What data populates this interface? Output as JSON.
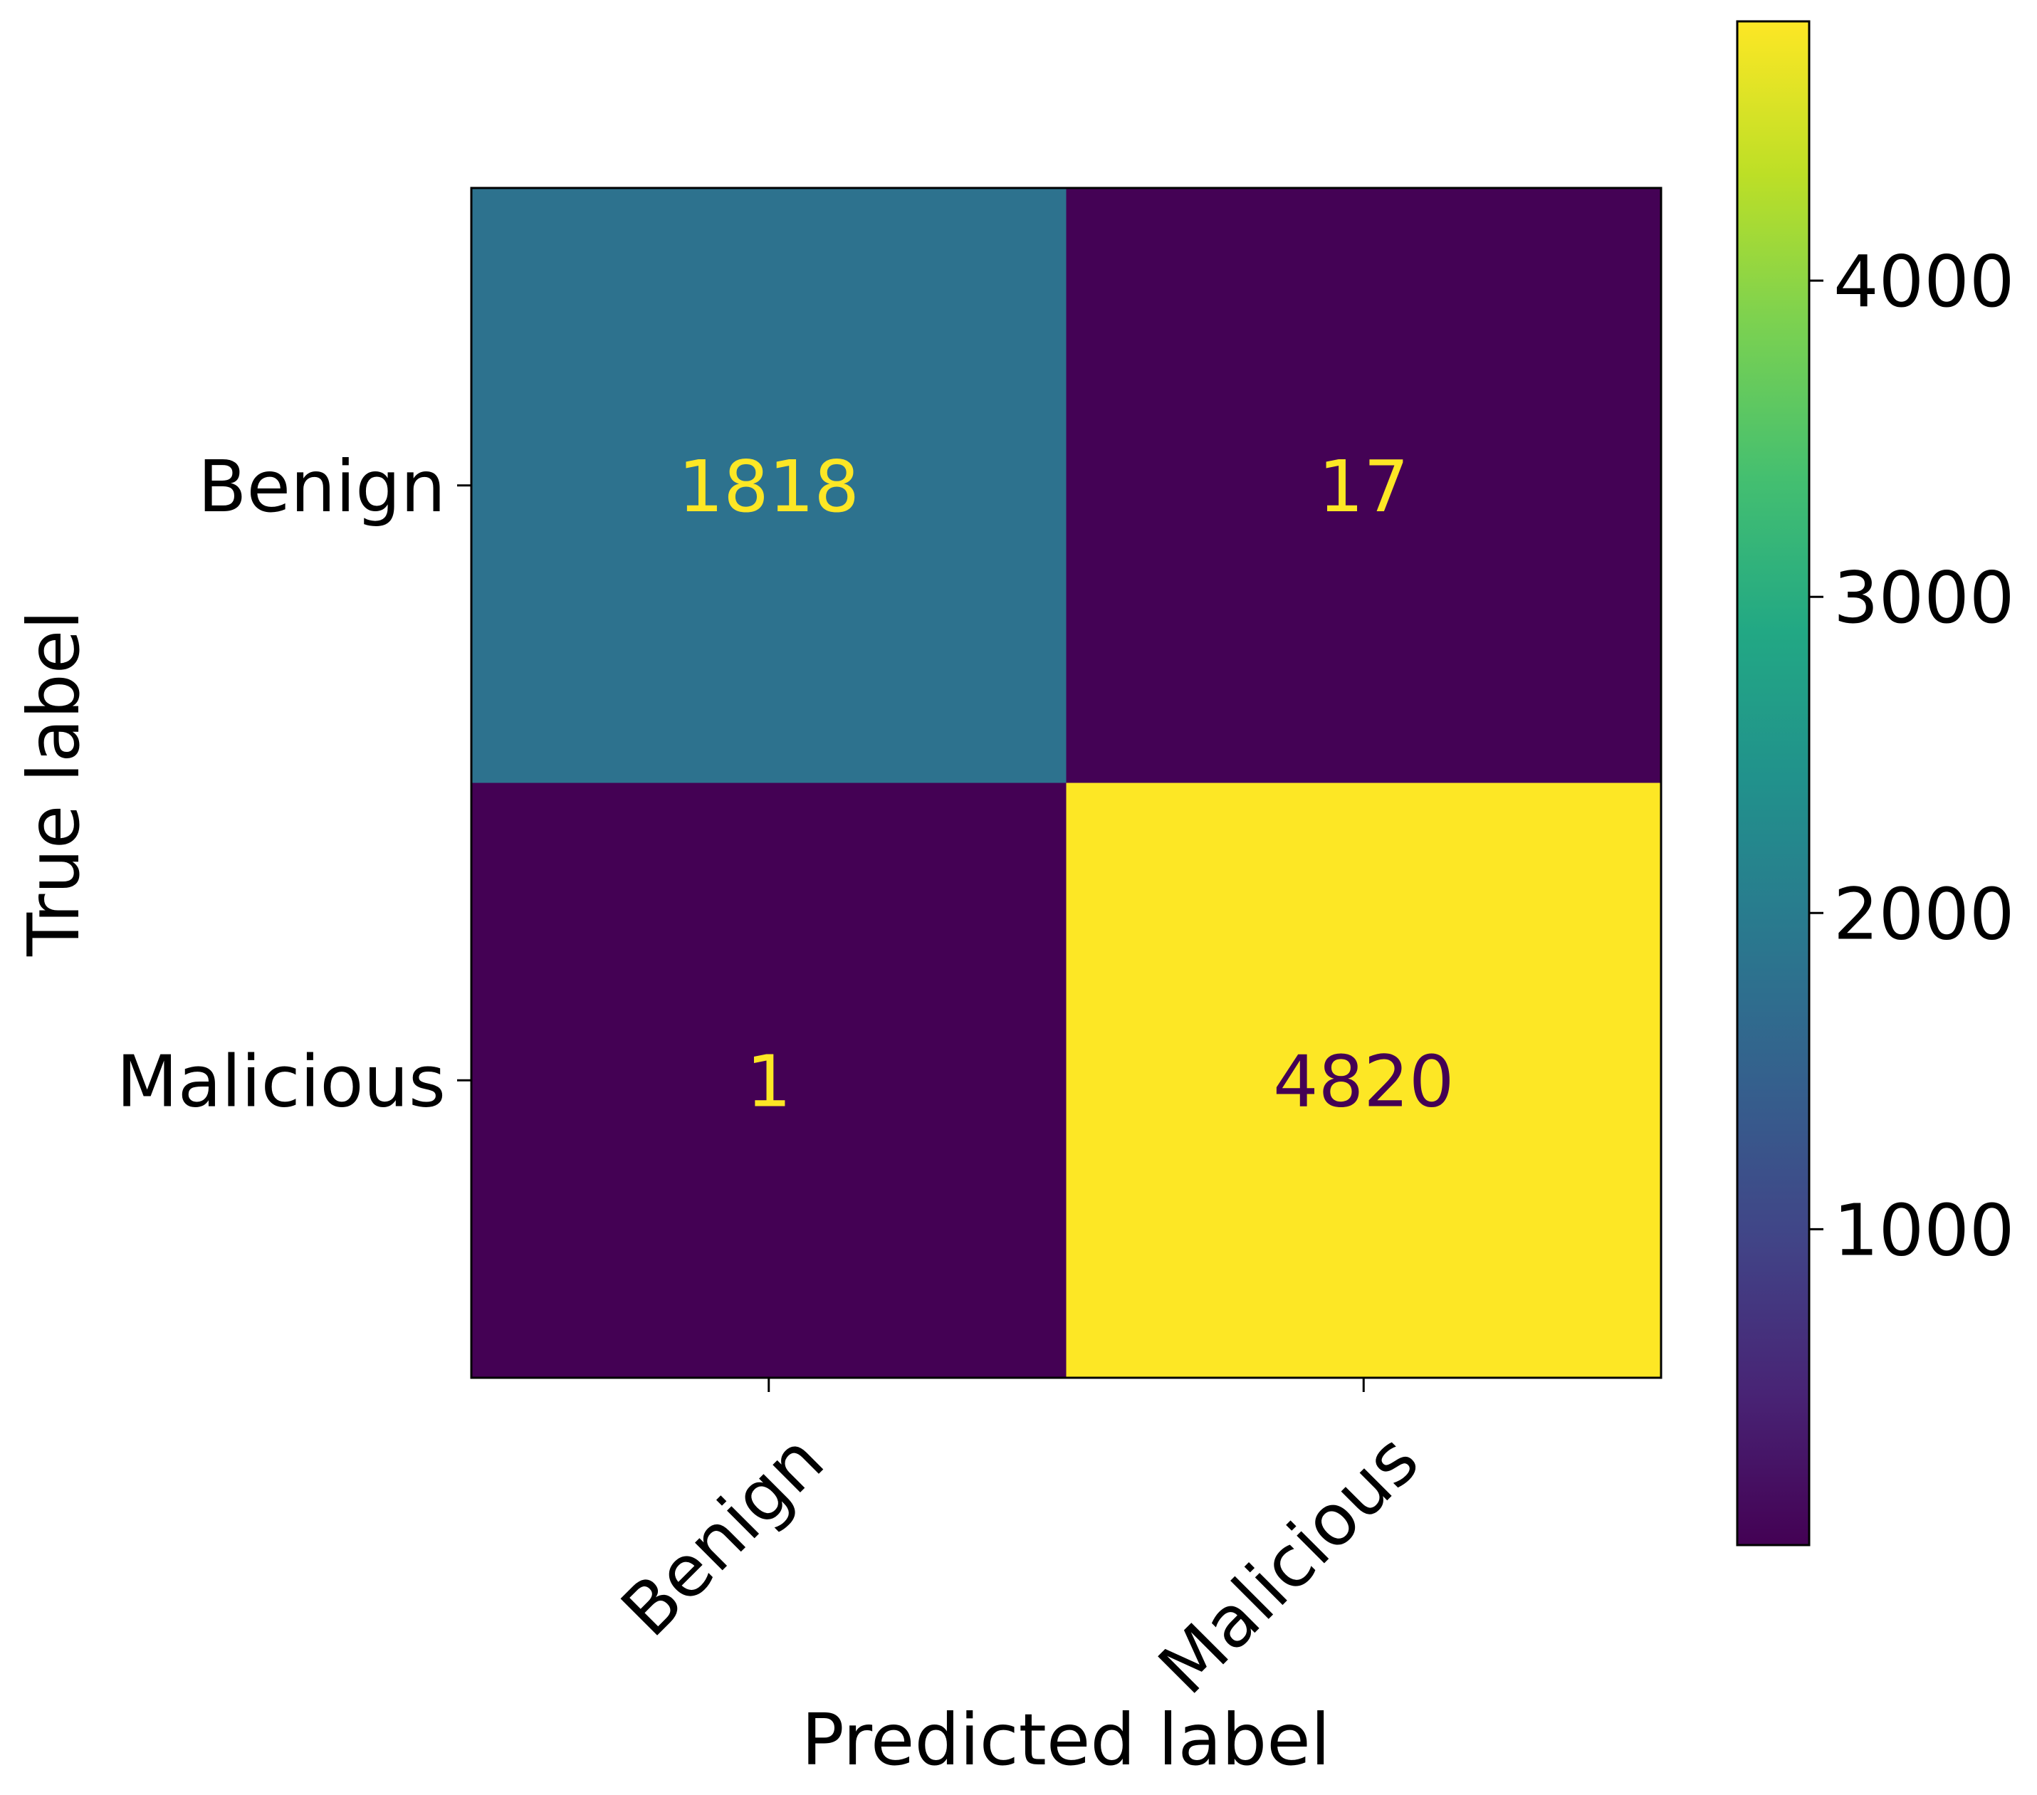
{
  "chart_data": {
    "type": "heatmap",
    "title": "",
    "xlabel": "Predicted label",
    "ylabel": "True label",
    "x_categories": [
      "Benign",
      "Malicious"
    ],
    "y_categories": [
      "Benign",
      "Malicious"
    ],
    "matrix": [
      [
        1818,
        17
      ],
      [
        1,
        4820
      ]
    ],
    "colormap": "viridis",
    "colorbar": {
      "range": [
        1,
        4820
      ],
      "ticks": [
        1000,
        2000,
        3000,
        4000
      ]
    },
    "grid": false,
    "text_colors": {
      "on_dark": "#fde725",
      "on_light": "#440154"
    }
  }
}
